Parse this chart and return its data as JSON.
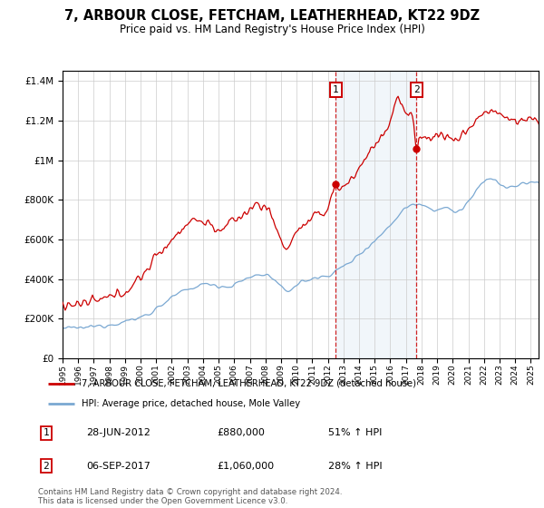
{
  "title": "7, ARBOUR CLOSE, FETCHAM, LEATHERHEAD, KT22 9DZ",
  "subtitle": "Price paid vs. HM Land Registry's House Price Index (HPI)",
  "legend_line1": "7, ARBOUR CLOSE, FETCHAM, LEATHERHEAD, KT22 9DZ (detached house)",
  "legend_line2": "HPI: Average price, detached house, Mole Valley",
  "transaction1_date": "28-JUN-2012",
  "transaction1_price": "£880,000",
  "transaction1_hpi": "51% ↑ HPI",
  "transaction2_date": "06-SEP-2017",
  "transaction2_price": "£1,060,000",
  "transaction2_hpi": "28% ↑ HPI",
  "footer": "Contains HM Land Registry data © Crown copyright and database right 2024.\nThis data is licensed under the Open Government Licence v3.0.",
  "hpi_color": "#7aa8d2",
  "price_color": "#cc0000",
  "marker1_x": 2012.5,
  "marker2_x": 2017.67,
  "marker1_price": 880000,
  "marker2_price": 1060000,
  "ylim_max": 1450000,
  "xlim_start": 1995.0,
  "xlim_end": 2025.5
}
